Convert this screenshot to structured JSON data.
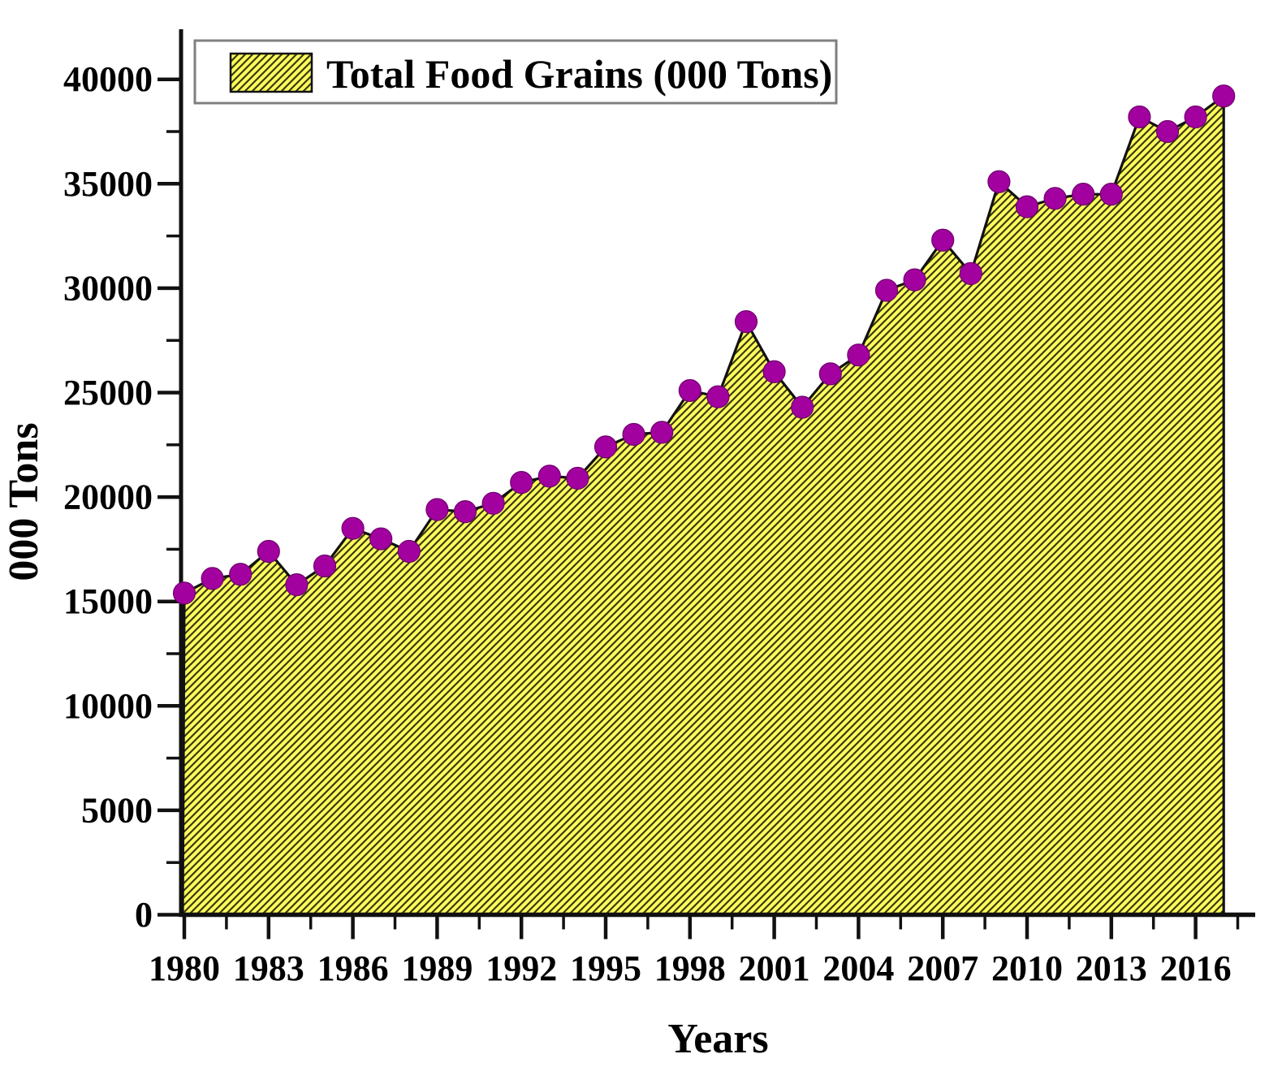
{
  "figure": {
    "background": "#ffffff",
    "kind": "area chart with hatched fill and circular markers"
  },
  "legend": {
    "label": "Total Food Grains (000 Tons)",
    "position": "top-left",
    "swatch": "yellow-hatched-swatch"
  },
  "chart_data": {
    "type": "area",
    "title": "",
    "xlabel": "Years",
    "ylabel": "000 Tons",
    "x": [
      1980,
      1981,
      1982,
      1983,
      1984,
      1985,
      1986,
      1987,
      1988,
      1989,
      1990,
      1991,
      1992,
      1993,
      1994,
      1995,
      1996,
      1997,
      1998,
      1999,
      2000,
      2001,
      2002,
      2003,
      2004,
      2005,
      2006,
      2007,
      2008,
      2009,
      2010,
      2011,
      2012,
      2013,
      2014,
      2015,
      2016,
      2017
    ],
    "series": [
      {
        "name": "Total Food Grains (000 Tons)",
        "values": [
          15400,
          16100,
          16300,
          17400,
          15800,
          16700,
          18500,
          18000,
          17400,
          19400,
          19300,
          19700,
          20700,
          21000,
          20900,
          22400,
          23000,
          23100,
          25100,
          24800,
          28400,
          26000,
          24300,
          25900,
          26800,
          29900,
          30400,
          32300,
          30700,
          35100,
          33900,
          34300,
          34500,
          34500,
          38200,
          37500,
          38200,
          39200
        ]
      }
    ],
    "ylim": [
      0,
      42400
    ],
    "xlim": [
      1980,
      2018.1
    ],
    "grid": false,
    "legend_position": "top-left",
    "y_major_ticks": [
      0,
      5000,
      10000,
      15000,
      20000,
      25000,
      30000,
      35000,
      40000
    ],
    "y_major_tick_labels": [
      "0",
      "5000",
      "10000",
      "15000",
      "20000",
      "25000",
      "30000",
      "35000",
      "40000"
    ],
    "y_minor_ticks": [
      2500,
      7500,
      12500,
      17500,
      22500,
      27500,
      32500,
      37500
    ],
    "x_major_ticks": [
      1980,
      1983,
      1986,
      1989,
      1992,
      1995,
      1998,
      2001,
      2004,
      2007,
      2010,
      2013,
      2016
    ],
    "x_major_tick_labels": [
      "1980",
      "1983",
      "1986",
      "1989",
      "1992",
      "1995",
      "1998",
      "2001",
      "2004",
      "2007",
      "2010",
      "2013",
      "2016"
    ],
    "x_minor_ticks": [
      1981.5,
      1984.5,
      1987.5,
      1990.5,
      1993.5,
      1996.5,
      1999.5,
      2002.5,
      2005.5,
      2008.5,
      2011.5,
      2014.5,
      2017.5
    ],
    "colors": {
      "area_fill": "#FCFC5C",
      "hatch_line": "#39390d",
      "area_outline": "#111111",
      "marker_fill": "#A300A0",
      "marker_edge": "#6f016c",
      "axis": "#111111",
      "legend_border": "#7f7f7f",
      "legend_background": "#ffffff",
      "text": "#000000"
    }
  }
}
